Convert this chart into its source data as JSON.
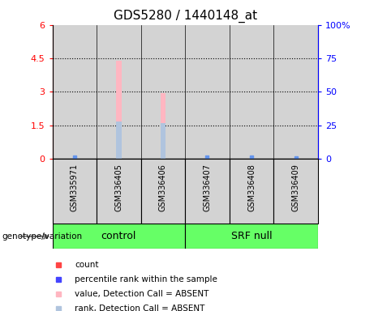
{
  "title": "GDS5280 / 1440148_at",
  "samples": [
    "GSM335971",
    "GSM336405",
    "GSM336406",
    "GSM336407",
    "GSM336408",
    "GSM336409"
  ],
  "groups": [
    "control",
    "control",
    "control",
    "SRF null",
    "SRF null",
    "SRF null"
  ],
  "bar_color_absent": "#FFB6C1",
  "rank_color_absent": "#B0C4DE",
  "rank_color_present": "#6495ED",
  "count_color": "#FF4444",
  "blue_dot_color": "#4444FF",
  "ylim_left": [
    0,
    6
  ],
  "ylim_right": [
    0,
    100
  ],
  "yticks_left": [
    0,
    1.5,
    3.0,
    4.5,
    6.0
  ],
  "ytick_labels_left": [
    "0",
    "1.5",
    "3",
    "4.5",
    "6"
  ],
  "yticks_right": [
    0,
    25,
    50,
    75,
    100
  ],
  "ytick_labels_right": [
    "0",
    "25",
    "50",
    "75",
    "100%"
  ],
  "value_bars": [
    null,
    4.4,
    2.95,
    null,
    null,
    null
  ],
  "rank_bars": [
    null,
    1.65,
    1.6,
    null,
    null,
    null
  ],
  "blue_dots_y": [
    0.08,
    null,
    null,
    0.08,
    0.05,
    0.04
  ],
  "legend_items": [
    {
      "label": "count",
      "color": "#FF4444"
    },
    {
      "label": "percentile rank within the sample",
      "color": "#4444FF"
    },
    {
      "label": "value, Detection Call = ABSENT",
      "color": "#FFB6C1"
    },
    {
      "label": "rank, Detection Call = ABSENT",
      "color": "#B0C4DE"
    }
  ],
  "genotype_label": "genotype/variation",
  "group_label_fontsize": 9,
  "title_fontsize": 11,
  "tick_label_fontsize": 8,
  "sample_label_fontsize": 7,
  "legend_fontsize": 7.5,
  "column_bg_color": "#D3D3D3",
  "plot_bg_color": "#FFFFFF",
  "group_green_color": "#66FF66"
}
